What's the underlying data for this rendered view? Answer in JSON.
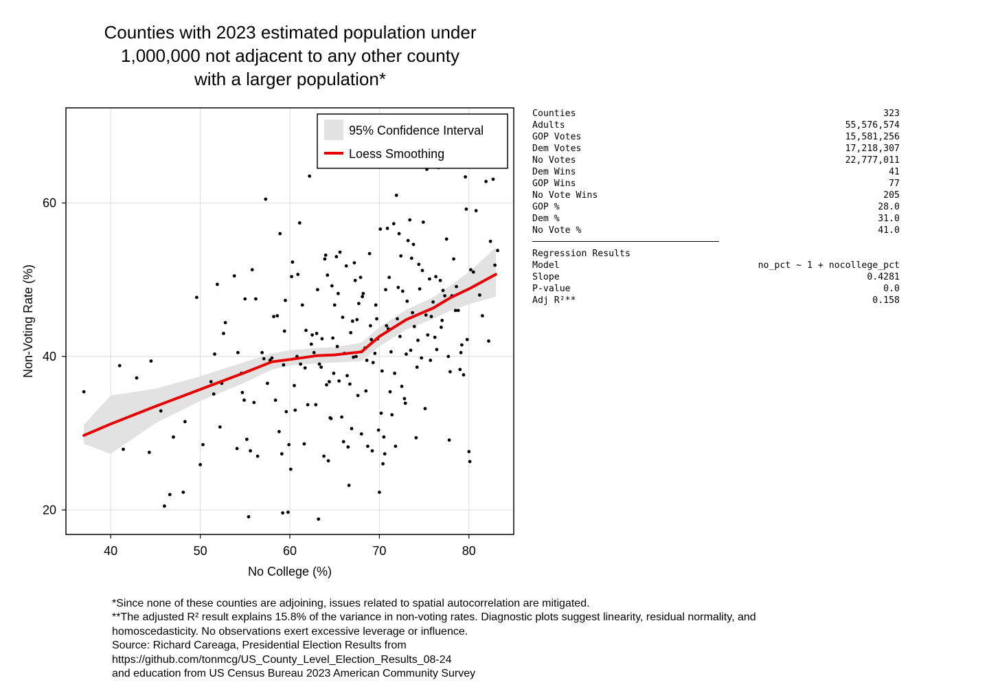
{
  "title_lines": [
    "Counties with 2023 estimated population under",
    "1,000,000 not adjacent to any other county",
    "with a larger population*"
  ],
  "stats": {
    "rows": [
      {
        "label": "Counties",
        "value": "323"
      },
      {
        "label": "Adults",
        "value": "55,576,574"
      },
      {
        "label": "GOP Votes",
        "value": "15,581,256"
      },
      {
        "label": "Dem Votes",
        "value": "17,218,307"
      },
      {
        "label": "No Votes",
        "value": "22,777,011"
      },
      {
        "label": "Dem Wins",
        "value": "41"
      },
      {
        "label": "GOP Wins",
        "value": "77"
      },
      {
        "label": "No Vote Wins",
        "value": "205"
      },
      {
        "label": "GOP %",
        "value": "28.0"
      },
      {
        "label": "Dem %",
        "value": "31.0"
      },
      {
        "label": "No Vote %",
        "value": "41.0"
      }
    ],
    "regression_title": "Regression Results",
    "regression_rows": [
      {
        "label": "Model",
        "value": "no_pct ~ 1 + nocollege_pct"
      },
      {
        "label": "Slope",
        "value": "0.4281"
      },
      {
        "label": "P-value",
        "value": "0.0"
      },
      {
        "label": "Adj R²**",
        "value": "0.158"
      }
    ]
  },
  "notes": [
    "*Since none of these counties are adjoining, issues related to spatial autocorrelation are mitigated.",
    "**The adjusted R² result explains 15.8% of the variance in non-voting rates.  Diagnostic plots suggest linearity, residual normality, and",
    "homoscedasticity. No observations exert excessive leverage or influence.",
    "Source: Richard Careaga, Presidential Election Results from",
    "https://github.com/tonmcg/US_County_Level_Election_Results_08-24",
    "and education from US Census Bureau 2023 American Community Survey"
  ],
  "chart_data": {
    "type": "scatter",
    "xlabel": "No College (%)",
    "ylabel": "Non-Voting Rate (%)",
    "xlim": [
      35,
      85
    ],
    "ylim": [
      16.8,
      72.4
    ],
    "xticks": [
      40,
      50,
      60,
      70,
      80
    ],
    "yticks": [
      20,
      40,
      60
    ],
    "grid": true,
    "legend_position": "top-right",
    "legend": [
      {
        "label": "95% Confidence Interval",
        "kind": "band",
        "color": "#e2e2e2"
      },
      {
        "label": "Loess Smoothing",
        "kind": "line",
        "color": "#e60000"
      }
    ],
    "loess": {
      "x": [
        37,
        40,
        45,
        50,
        55,
        58,
        60,
        63,
        65,
        68,
        70,
        73,
        76,
        78,
        80,
        83
      ],
      "y": [
        29.7,
        31.2,
        33.5,
        35.7,
        37.9,
        39.3,
        39.6,
        40.1,
        40.2,
        40.6,
        42.6,
        44.8,
        46.3,
        47.7,
        48.8,
        50.7
      ],
      "lower": [
        28.6,
        27.3,
        31.3,
        34.2,
        36.6,
        38.3,
        38.8,
        39.1,
        39.2,
        39.4,
        41.3,
        43.5,
        44.9,
        46.0,
        46.8,
        47.8
      ],
      "upper": [
        31.1,
        34.9,
        35.8,
        37.4,
        39.3,
        40.4,
        40.8,
        41.1,
        41.2,
        41.8,
        43.8,
        46.1,
        47.7,
        49.3,
        51.0,
        54.2
      ]
    },
    "points": [
      [
        37,
        35.4
      ],
      [
        41,
        38.8
      ],
      [
        41.4,
        27.9
      ],
      [
        42.9,
        37.2
      ],
      [
        44.3,
        27.5
      ],
      [
        44.5,
        39.4
      ],
      [
        45.6,
        32.9
      ],
      [
        46,
        20.5
      ],
      [
        46.6,
        22
      ],
      [
        47,
        29.5
      ],
      [
        48.1,
        22.3
      ],
      [
        48.3,
        31.5
      ],
      [
        49.6,
        47.7
      ],
      [
        50,
        25.9
      ],
      [
        50.3,
        28.5
      ],
      [
        51.2,
        36.7
      ],
      [
        51.5,
        35.1
      ],
      [
        51.6,
        40.3
      ],
      [
        51.9,
        49.4
      ],
      [
        52.2,
        30.8
      ],
      [
        52.4,
        36.5
      ],
      [
        52.6,
        43
      ],
      [
        52.8,
        44.4
      ],
      [
        53.8,
        50.5
      ],
      [
        54.1,
        28
      ],
      [
        54.2,
        40.5
      ],
      [
        54.6,
        37.8
      ],
      [
        54.7,
        35.3
      ],
      [
        54.9,
        34.3
      ],
      [
        55,
        47.5
      ],
      [
        55.2,
        29.2
      ],
      [
        55.4,
        19.1
      ],
      [
        55.6,
        27.7
      ],
      [
        55.8,
        51.3
      ],
      [
        56,
        34
      ],
      [
        56.2,
        47.5
      ],
      [
        56.4,
        27
      ],
      [
        56.9,
        40.5
      ],
      [
        57.1,
        39.7
      ],
      [
        57.3,
        60.5
      ],
      [
        57.5,
        36.5
      ],
      [
        57.8,
        39.5
      ],
      [
        58,
        39.8
      ],
      [
        58.2,
        45.2
      ],
      [
        58.4,
        34.3
      ],
      [
        58.6,
        45.3
      ],
      [
        58.9,
        56
      ],
      [
        58.8,
        30.2
      ],
      [
        59.1,
        27.3
      ],
      [
        59.2,
        19.6
      ],
      [
        59.3,
        38.9
      ],
      [
        59.4,
        43.3
      ],
      [
        59.5,
        47.3
      ],
      [
        59.6,
        32.8
      ],
      [
        59.8,
        19.7
      ],
      [
        59.9,
        28.5
      ],
      [
        60.1,
        25.3
      ],
      [
        60.2,
        50.4
      ],
      [
        60.3,
        52.3
      ],
      [
        60.5,
        36.2
      ],
      [
        60.6,
        33
      ],
      [
        60.8,
        40
      ],
      [
        60.9,
        50.7
      ],
      [
        61.1,
        57.4
      ],
      [
        61.2,
        39
      ],
      [
        61.4,
        46.7
      ],
      [
        61.6,
        28.6
      ],
      [
        61.7,
        38.5
      ],
      [
        61.8,
        43.4
      ],
      [
        62,
        33.7
      ],
      [
        62.2,
        63.5
      ],
      [
        62.4,
        41.6
      ],
      [
        62.5,
        42.8
      ],
      [
        62.7,
        40.5
      ],
      [
        62.9,
        33.7
      ],
      [
        63,
        43
      ],
      [
        63.1,
        48.7
      ],
      [
        63.2,
        18.8
      ],
      [
        63.3,
        39
      ],
      [
        63.5,
        38.6
      ],
      [
        63.6,
        42.3
      ],
      [
        63.8,
        27
      ],
      [
        63.9,
        52.7
      ],
      [
        64,
        53.2
      ],
      [
        64.1,
        36.3
      ],
      [
        64.2,
        50.6
      ],
      [
        64.3,
        26.4
      ],
      [
        64.4,
        36.7
      ],
      [
        64.5,
        32
      ],
      [
        64.6,
        31.9
      ],
      [
        64.7,
        49.2
      ],
      [
        64.8,
        42.4
      ],
      [
        64.9,
        37.8
      ],
      [
        65,
        46.7
      ],
      [
        65.2,
        53
      ],
      [
        65.3,
        41.3
      ],
      [
        65.4,
        48.2
      ],
      [
        65.5,
        36.8
      ],
      [
        65.6,
        53.6
      ],
      [
        65.8,
        32.1
      ],
      [
        65.9,
        45.1
      ],
      [
        66,
        28.9
      ],
      [
        66.1,
        40.4
      ],
      [
        66.3,
        51.8
      ],
      [
        66.4,
        37.5
      ],
      [
        66.5,
        28.2
      ],
      [
        66.6,
        23.2
      ],
      [
        66.7,
        36.4
      ],
      [
        66.8,
        43.1
      ],
      [
        66.9,
        30.6
      ],
      [
        67.1,
        39.9
      ],
      [
        67,
        44.6
      ],
      [
        67.2,
        52.2
      ],
      [
        67.3,
        49.9
      ],
      [
        67.4,
        40
      ],
      [
        67.5,
        44.8
      ],
      [
        67.6,
        34.9
      ],
      [
        67.7,
        46.9
      ],
      [
        67.9,
        50.3
      ],
      [
        68,
        29.9
      ],
      [
        68.1,
        47.8
      ],
      [
        68.2,
        48.2
      ],
      [
        68.4,
        41.1
      ],
      [
        68.5,
        35.5
      ],
      [
        68.6,
        39.5
      ],
      [
        68.7,
        28.3
      ],
      [
        68.9,
        53.4
      ],
      [
        69,
        44
      ],
      [
        69.1,
        42.2
      ],
      [
        69.2,
        27.7
      ],
      [
        69.3,
        39.2
      ],
      [
        69.5,
        40.4
      ],
      [
        69.6,
        46.7
      ],
      [
        69.7,
        44.9
      ],
      [
        69.8,
        42.3
      ],
      [
        69.9,
        30.4
      ],
      [
        70,
        22.3
      ],
      [
        70.1,
        56.6
      ],
      [
        70.2,
        32.6
      ],
      [
        70.3,
        38.1
      ],
      [
        70.4,
        26
      ],
      [
        70.5,
        29.5
      ],
      [
        70.6,
        27.3
      ],
      [
        70.7,
        48.7
      ],
      [
        70.8,
        44
      ],
      [
        70.9,
        56.7
      ],
      [
        71,
        43.6
      ],
      [
        71.1,
        50.3
      ],
      [
        71.2,
        35.4
      ],
      [
        71.3,
        40.6
      ],
      [
        71.4,
        32.4
      ],
      [
        71.6,
        57.3
      ],
      [
        71.7,
        37.8
      ],
      [
        71.8,
        28.3
      ],
      [
        71.9,
        61
      ],
      [
        72,
        44.9
      ],
      [
        72.1,
        49
      ],
      [
        72.2,
        56
      ],
      [
        72.3,
        42.6
      ],
      [
        72.4,
        53.1
      ],
      [
        72.5,
        36.1
      ],
      [
        72.6,
        48.5
      ],
      [
        72.8,
        34.5
      ],
      [
        72.9,
        33.9
      ],
      [
        73,
        40.3
      ],
      [
        73.1,
        47.2
      ],
      [
        73.2,
        55.1
      ],
      [
        73.4,
        57.8
      ],
      [
        73.5,
        40.8
      ],
      [
        73.6,
        52.8
      ],
      [
        73.7,
        45.7
      ],
      [
        73.8,
        54.6
      ],
      [
        73.9,
        43.9
      ],
      [
        74.1,
        29.4
      ],
      [
        74.2,
        38.6
      ],
      [
        74.3,
        42.1
      ],
      [
        74.4,
        52
      ],
      [
        74.5,
        48.8
      ],
      [
        74.7,
        39.8
      ],
      [
        74.8,
        51.2
      ],
      [
        74.9,
        57.5
      ],
      [
        75.1,
        33.2
      ],
      [
        75.2,
        45.4
      ],
      [
        75.3,
        64.4
      ],
      [
        75.4,
        42.8
      ],
      [
        75.6,
        50.1
      ],
      [
        75.7,
        39.5
      ],
      [
        75.8,
        45.2
      ],
      [
        76,
        47.1
      ],
      [
        76.1,
        64.8
      ],
      [
        76.2,
        42.5
      ],
      [
        76.3,
        50.4
      ],
      [
        76.4,
        40.9
      ],
      [
        76.6,
        64.6
      ],
      [
        76.8,
        49.9
      ],
      [
        76.9,
        43.8
      ],
      [
        77,
        44.7
      ],
      [
        77.1,
        48.6
      ],
      [
        77.3,
        47.9
      ],
      [
        77.5,
        55.3
      ],
      [
        77.7,
        40
      ],
      [
        77.8,
        29.1
      ],
      [
        77.9,
        38
      ],
      [
        78.1,
        47.9
      ],
      [
        78.3,
        52.7
      ],
      [
        78.5,
        46
      ],
      [
        78.6,
        49.1
      ],
      [
        78.8,
        46
      ],
      [
        79,
        38.3
      ],
      [
        79.1,
        40.5
      ],
      [
        79.2,
        41.5
      ],
      [
        79.4,
        37.6
      ],
      [
        79.6,
        63.4
      ],
      [
        79.7,
        59.2
      ],
      [
        79.8,
        42.2
      ],
      [
        80,
        27.6
      ],
      [
        80.1,
        26.3
      ],
      [
        80.2,
        51.3
      ],
      [
        80.5,
        51
      ],
      [
        80.8,
        59
      ],
      [
        81.2,
        48
      ],
      [
        81.5,
        45.3
      ],
      [
        81.9,
        62.8
      ],
      [
        82.2,
        42
      ],
      [
        82.4,
        55
      ],
      [
        82.7,
        63.1
      ],
      [
        82.9,
        51.9
      ],
      [
        83.2,
        53.8
      ]
    ]
  }
}
